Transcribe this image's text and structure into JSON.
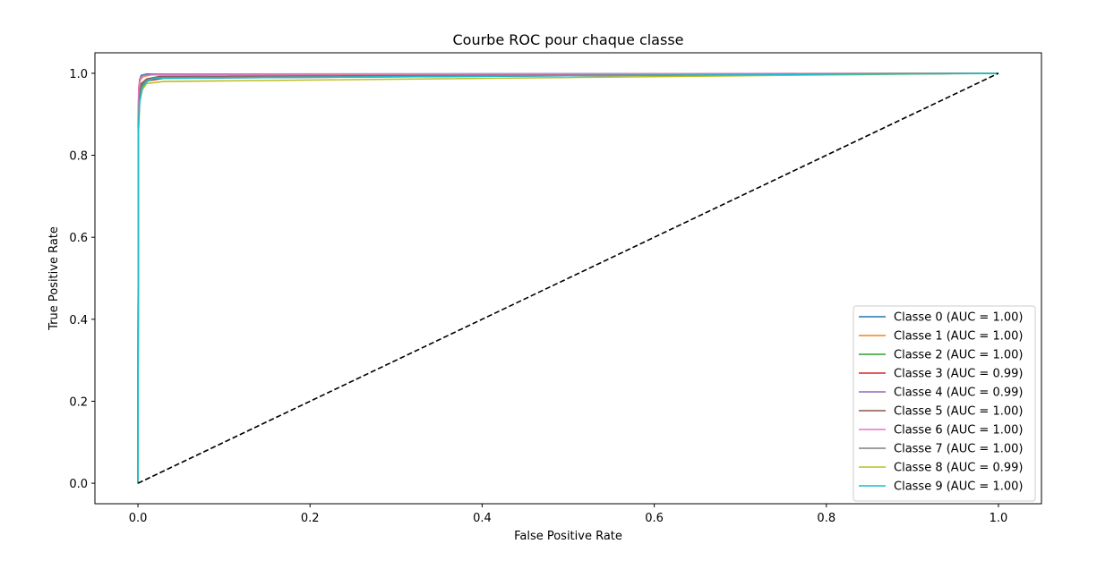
{
  "chart_data": {
    "type": "line",
    "title": "Courbe ROC pour chaque classe",
    "xlabel": "False Positive Rate",
    "ylabel": "True Positive Rate",
    "xlim": [
      -0.05,
      1.05
    ],
    "ylim": [
      -0.05,
      1.05
    ],
    "xticks": [
      "0.0",
      "0.2",
      "0.4",
      "0.6",
      "0.8",
      "1.0"
    ],
    "yticks": [
      "0.0",
      "0.2",
      "0.4",
      "0.6",
      "0.8",
      "1.0"
    ],
    "grid": false,
    "legend_position": "lower-right",
    "diagonal": {
      "x": [
        0,
        1
      ],
      "y": [
        0,
        1
      ],
      "color": "#000000",
      "style": "dashed"
    },
    "series": [
      {
        "name": "Classe 0 (AUC = 1.00)",
        "color": "#1f77b4",
        "x": [
          0,
          0.0005,
          0.001,
          0.002,
          0.004,
          0.01,
          1.0
        ],
        "y": [
          0,
          0.9,
          0.96,
          0.985,
          0.995,
          0.998,
          1.0
        ]
      },
      {
        "name": "Classe 1 (AUC = 1.00)",
        "color": "#ff7f0e",
        "x": [
          0,
          0.0005,
          0.001,
          0.003,
          0.006,
          0.015,
          1.0
        ],
        "y": [
          0,
          0.92,
          0.965,
          0.985,
          0.992,
          0.996,
          1.0
        ]
      },
      {
        "name": "Classe 2 (AUC = 1.00)",
        "color": "#2ca02c",
        "x": [
          0,
          0.0005,
          0.002,
          0.005,
          0.01,
          0.03,
          1.0
        ],
        "y": [
          0,
          0.86,
          0.94,
          0.97,
          0.985,
          0.99,
          1.0
        ]
      },
      {
        "name": "Classe 3 (AUC = 0.99)",
        "color": "#d62728",
        "x": [
          0,
          0.0005,
          0.002,
          0.005,
          0.012,
          0.03,
          1.0
        ],
        "y": [
          0,
          0.87,
          0.945,
          0.97,
          0.982,
          0.988,
          1.0
        ]
      },
      {
        "name": "Classe 4 (AUC = 0.99)",
        "color": "#9467bd",
        "x": [
          0,
          0.0005,
          0.002,
          0.004,
          0.01,
          0.03,
          1.0
        ],
        "y": [
          0,
          0.9,
          0.955,
          0.975,
          0.985,
          0.99,
          1.0
        ]
      },
      {
        "name": "Classe 5 (AUC = 1.00)",
        "color": "#8c564b",
        "x": [
          0,
          0.0005,
          0.002,
          0.004,
          0.01,
          0.025,
          1.0
        ],
        "y": [
          0,
          0.89,
          0.95,
          0.975,
          0.986,
          0.992,
          1.0
        ]
      },
      {
        "name": "Classe 6 (AUC = 1.00)",
        "color": "#e377c2",
        "x": [
          0,
          0.0005,
          0.001,
          0.003,
          0.006,
          0.02,
          1.0
        ],
        "y": [
          0,
          0.93,
          0.97,
          0.988,
          0.994,
          0.997,
          1.0
        ]
      },
      {
        "name": "Classe 7 (AUC = 1.00)",
        "color": "#7f7f7f",
        "x": [
          0,
          0.0005,
          0.002,
          0.005,
          0.01,
          0.025,
          1.0
        ],
        "y": [
          0,
          0.88,
          0.95,
          0.972,
          0.984,
          0.99,
          1.0
        ]
      },
      {
        "name": "Classe 8 (AUC = 0.99)",
        "color": "#bcbd22",
        "x": [
          0,
          0.0005,
          0.002,
          0.005,
          0.01,
          0.03,
          1.0
        ],
        "y": [
          0,
          0.85,
          0.93,
          0.96,
          0.975,
          0.98,
          1.0
        ]
      },
      {
        "name": "Classe 9 (AUC = 1.00)",
        "color": "#17becf",
        "x": [
          0,
          0.0005,
          0.002,
          0.005,
          0.01,
          0.02,
          1.0
        ],
        "y": [
          0,
          0.86,
          0.93,
          0.965,
          0.98,
          0.988,
          1.0
        ]
      }
    ]
  }
}
